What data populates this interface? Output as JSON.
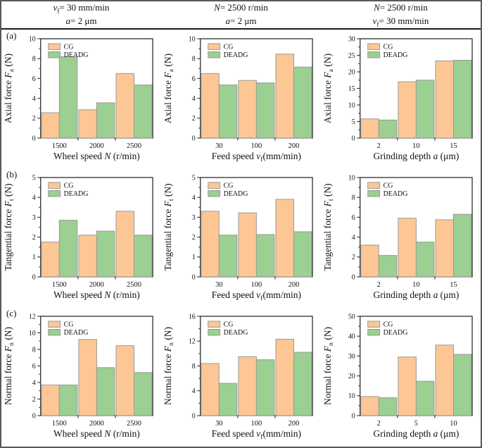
{
  "figure": {
    "panel_labels": [
      "(a)",
      "(b)",
      "(c)"
    ],
    "legend": [
      "CG",
      "DEADG"
    ],
    "colors": {
      "cg_fill": "#FCC795",
      "deadg_fill": "#9CCF92",
      "bar_stroke": "#9a9a96",
      "axis": "#2e2e2e"
    }
  },
  "header": {
    "columns": [
      {
        "line1": [
          {
            "t": "v",
            "i": 1
          },
          {
            "t": "f",
            "s": 1
          },
          {
            "t": "= 30 mm/min"
          }
        ],
        "line2": [
          {
            "t": "a",
            "i": 1
          },
          {
            "t": "= 2 μm"
          }
        ]
      },
      {
        "line1": [
          {
            "t": "N",
            "i": 1
          },
          {
            "t": "= 2500 r/min"
          }
        ],
        "line2": [
          {
            "t": "a",
            "i": 1
          },
          {
            "t": "= 2 μm"
          }
        ]
      },
      {
        "line1": [
          {
            "t": "N",
            "i": 1
          },
          {
            "t": "= 2500 r/min"
          }
        ],
        "line2": [
          {
            "t": "v",
            "i": 1
          },
          {
            "t": "f",
            "s": 1
          },
          {
            "t": "= 30 mm/min"
          }
        ]
      }
    ]
  },
  "chart_data": [
    {
      "id": "a1",
      "type": "bar",
      "categories": [
        "1500",
        "2000",
        "2500"
      ],
      "series": [
        {
          "name": "CG",
          "values": [
            2.55,
            2.85,
            6.5
          ]
        },
        {
          "name": "DEADG",
          "values": [
            8.2,
            3.55,
            5.35
          ]
        }
      ],
      "ylabel": {
        "pre": "Axial force ",
        "it": "F",
        "sub": "a",
        "post": " (N)"
      },
      "xlabel": {
        "pre": "Wheel speed ",
        "it": "N",
        "sub": "",
        "post": " (r/min)"
      },
      "ylim": [
        0,
        10
      ],
      "ytick_step": 2,
      "legend_position": "top-left",
      "grid": false
    },
    {
      "id": "a2",
      "type": "bar",
      "categories": [
        "30",
        "100",
        "200"
      ],
      "series": [
        {
          "name": "CG",
          "values": [
            6.5,
            5.8,
            8.45
          ]
        },
        {
          "name": "DEADG",
          "values": [
            5.35,
            5.55,
            7.15
          ]
        }
      ],
      "ylabel": {
        "pre": "Axial force ",
        "it": "F",
        "sub": "a",
        "post": " (N)"
      },
      "xlabel": {
        "pre": "Feed speed ",
        "it": "v",
        "sub": "f",
        "post": "(mm/min)"
      },
      "ylim": [
        0,
        10
      ],
      "ytick_step": 2,
      "legend_position": "top-left",
      "grid": false
    },
    {
      "id": "a3",
      "type": "bar",
      "categories": [
        "2",
        "10",
        "15"
      ],
      "series": [
        {
          "name": "CG",
          "values": [
            5.8,
            17.0,
            23.3
          ]
        },
        {
          "name": "DEADG",
          "values": [
            5.45,
            17.5,
            23.5
          ]
        }
      ],
      "ylabel": {
        "pre": "Axial force ",
        "it": "F",
        "sub": "a",
        "post": " (N)"
      },
      "xlabel": {
        "pre": "Grinding depth ",
        "it": "a",
        "sub": "",
        "post": " (μm)"
      },
      "ylim": [
        0,
        30
      ],
      "ytick_step": 5,
      "legend_position": "top-left",
      "grid": false
    },
    {
      "id": "b1",
      "type": "bar",
      "categories": [
        "1500",
        "2000",
        "2500"
      ],
      "series": [
        {
          "name": "CG",
          "values": [
            1.75,
            2.1,
            3.3
          ]
        },
        {
          "name": "DEADG",
          "values": [
            2.85,
            2.3,
            2.1
          ]
        }
      ],
      "ylabel": {
        "pre": "Tangential force ",
        "it": "F",
        "sub": "t",
        "post": " (N)"
      },
      "xlabel": {
        "pre": "Wheel speed ",
        "it": "N",
        "sub": "",
        "post": " (r/min)"
      },
      "ylim": [
        0,
        5
      ],
      "ytick_step": 1,
      "legend_position": "top-left",
      "grid": false
    },
    {
      "id": "b2",
      "type": "bar",
      "categories": [
        "30",
        "100",
        "200"
      ],
      "series": [
        {
          "name": "CG",
          "values": [
            3.3,
            3.22,
            3.9
          ]
        },
        {
          "name": "DEADG",
          "values": [
            2.1,
            2.13,
            2.27
          ]
        }
      ],
      "ylabel": {
        "pre": "Tangential force ",
        "it": "F",
        "sub": "t",
        "post": " (N)"
      },
      "xlabel": {
        "pre": "Feed speed ",
        "it": "v",
        "sub": "f",
        "post": "(mm/min)"
      },
      "ylim": [
        0,
        5
      ],
      "ytick_step": 1,
      "legend_position": "top-left",
      "grid": false
    },
    {
      "id": "b3",
      "type": "bar",
      "categories": [
        "2",
        "10",
        "15"
      ],
      "series": [
        {
          "name": "CG",
          "values": [
            3.2,
            5.9,
            5.75
          ]
        },
        {
          "name": "DEADG",
          "values": [
            2.15,
            3.5,
            6.3
          ]
        }
      ],
      "ylabel": {
        "pre": "Tangential force ",
        "it": "F",
        "sub": "t",
        "post": " (N)"
      },
      "xlabel": {
        "pre": "Grinding depth ",
        "it": "a",
        "sub": "",
        "post": " (μm)"
      },
      "ylim": [
        0,
        10
      ],
      "ytick_step": 2,
      "legend_position": "top-left",
      "grid": false
    },
    {
      "id": "c1",
      "type": "bar",
      "categories": [
        "1500",
        "2000",
        "2500"
      ],
      "series": [
        {
          "name": "CG",
          "values": [
            3.7,
            9.2,
            8.45
          ]
        },
        {
          "name": "DEADG",
          "values": [
            3.7,
            5.8,
            5.2
          ]
        }
      ],
      "ylabel": {
        "pre": "Normal force ",
        "it": "F",
        "sub": "n",
        "post": " (N)"
      },
      "xlabel": {
        "pre": "Wheel speed ",
        "it": "N",
        "sub": "",
        "post": " (r/min)"
      },
      "ylim": [
        0,
        12
      ],
      "ytick_step": 2,
      "legend_position": "top-left",
      "grid": false
    },
    {
      "id": "c2",
      "type": "bar",
      "categories": [
        "30",
        "100",
        "200"
      ],
      "series": [
        {
          "name": "CG",
          "values": [
            8.4,
            9.5,
            12.3
          ]
        },
        {
          "name": "DEADG",
          "values": [
            5.2,
            9.0,
            10.2
          ]
        }
      ],
      "ylabel": {
        "pre": "Normal force ",
        "it": "F",
        "sub": "n",
        "post": " (N)"
      },
      "xlabel": {
        "pre": "Feed speed ",
        "it": "v",
        "sub": "f",
        "post": "(mm/min)"
      },
      "ylim": [
        0,
        16
      ],
      "ytick_step": 4,
      "legend_position": "top-left",
      "grid": false
    },
    {
      "id": "c3",
      "type": "bar",
      "categories": [
        "2",
        "5",
        "10"
      ],
      "series": [
        {
          "name": "CG",
          "values": [
            9.6,
            29.5,
            35.5
          ]
        },
        {
          "name": "DEADG",
          "values": [
            9.0,
            17.3,
            30.8
          ]
        }
      ],
      "ylabel": {
        "pre": "Normal force ",
        "it": "F",
        "sub": "n",
        "post": " (N)"
      },
      "xlabel": {
        "pre": "Grinding depth ",
        "it": "a",
        "sub": "",
        "post": " (μm)"
      },
      "ylim": [
        0,
        50
      ],
      "ytick_step": 10,
      "legend_position": "top-left",
      "grid": false
    }
  ]
}
